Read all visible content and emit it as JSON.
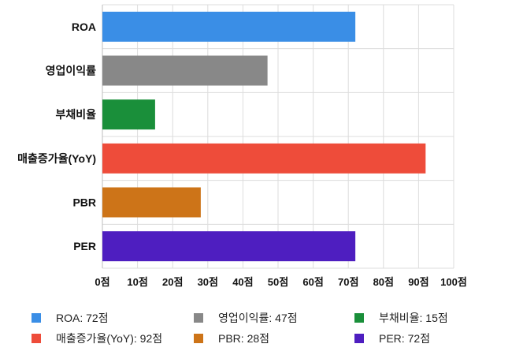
{
  "chart_data": {
    "type": "bar",
    "orientation": "horizontal",
    "categories": [
      "ROA",
      "영업이익률",
      "부채비율",
      "매출증가율(YoY)",
      "PBR",
      "PER"
    ],
    "values": [
      72,
      47,
      15,
      92,
      28,
      72
    ],
    "colors": [
      "#3a8ee6",
      "#888888",
      "#1a8f3a",
      "#ee4c3a",
      "#cd7418",
      "#4e1ec0"
    ],
    "xlim": [
      0,
      100
    ],
    "ticks": [
      0,
      10,
      20,
      30,
      40,
      50,
      60,
      70,
      80,
      90,
      100
    ],
    "tick_labels": [
      "0점",
      "10점",
      "20점",
      "30점",
      "40점",
      "50점",
      "60점",
      "70점",
      "80점",
      "90점",
      "100점"
    ],
    "grid": true,
    "legend_position": "bottom",
    "legend": [
      {
        "label": "ROA: 72점",
        "color": "#3a8ee6"
      },
      {
        "label": "영업이익률: 47점",
        "color": "#888888"
      },
      {
        "label": "부채비율: 15점",
        "color": "#1a8f3a"
      },
      {
        "label": "매출증가율(YoY): 92점",
        "color": "#ee4c3a"
      },
      {
        "label": "PBR: 28점",
        "color": "#cd7418"
      },
      {
        "label": "PER: 72점",
        "color": "#4e1ec0"
      }
    ]
  }
}
